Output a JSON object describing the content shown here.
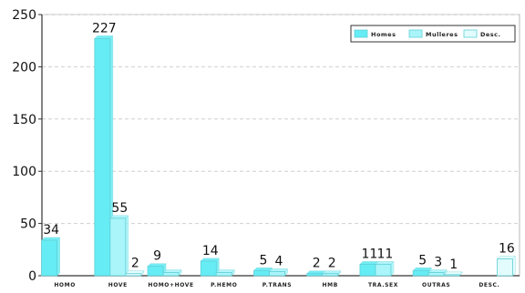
{
  "chart_data": {
    "type": "bar",
    "title": "",
    "xlabel": "",
    "ylabel": "",
    "ylim": [
      0,
      250
    ],
    "yticks": [
      0,
      50,
      100,
      150,
      200,
      250
    ],
    "grid": true,
    "legend_position": "top-right",
    "categories": [
      "HOMO",
      "HOVE",
      "HOMO+HOVE",
      "P.HEMO",
      "P.TRANS",
      "HMB",
      "TRA.SEX",
      "OUTRAS",
      "DESC."
    ],
    "series": [
      {
        "name": "Homes",
        "color": "#66ecf4",
        "values": [
          34,
          227,
          9,
          14,
          5,
          2,
          11,
          5,
          0
        ],
        "labels": [
          "34",
          "227",
          "9",
          "14",
          "5",
          "2",
          "11",
          "5",
          ""
        ]
      },
      {
        "name": "Mulleres",
        "color": "#a9f5fa",
        "values": [
          0,
          55,
          3,
          3,
          4,
          2,
          11,
          3,
          0
        ],
        "labels": [
          "",
          "55",
          "",
          "",
          "4",
          "2",
          "11",
          "3",
          ""
        ]
      },
      {
        "name": "Desc.",
        "color": "#e2fcfe",
        "values": [
          0,
          2,
          0,
          0,
          0,
          0,
          0,
          1,
          16
        ],
        "labels": [
          "",
          "2",
          "",
          "",
          "",
          "",
          "",
          "1",
          "16"
        ]
      }
    ]
  }
}
